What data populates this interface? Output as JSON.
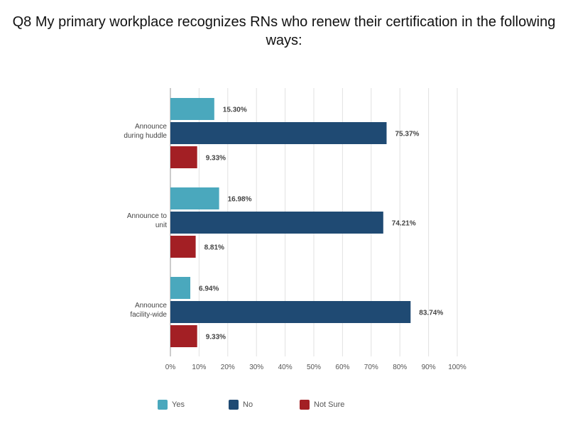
{
  "chart_data": {
    "type": "bar",
    "orientation": "horizontal",
    "title": "Q8 My primary workplace recognizes RNs who renew their certification in the following ways:",
    "categories": [
      [
        "Announce",
        "during huddle"
      ],
      [
        "Announce to",
        "unit"
      ],
      [
        "Announce",
        "facility-wide"
      ]
    ],
    "series": [
      {
        "name": "Yes",
        "color": "#4aa8bd",
        "values": [
          15.3,
          16.98,
          6.94
        ]
      },
      {
        "name": "No",
        "color": "#1f4a73",
        "values": [
          75.37,
          74.21,
          83.74
        ]
      },
      {
        "name": "Not Sure",
        "color": "#a31f24",
        "values": [
          9.33,
          8.81,
          9.33
        ]
      }
    ],
    "value_labels": [
      [
        "15.30%",
        "75.37%",
        "9.33%"
      ],
      [
        "16.98%",
        "74.21%",
        "8.81%"
      ],
      [
        "6.94%",
        "83.74%",
        "9.33%"
      ]
    ],
    "xlim": [
      0,
      100
    ],
    "x_ticks": [
      "0%",
      "10%",
      "20%",
      "30%",
      "40%",
      "50%",
      "60%",
      "70%",
      "80%",
      "90%",
      "100%"
    ],
    "grid": true,
    "legend_position": "bottom"
  }
}
